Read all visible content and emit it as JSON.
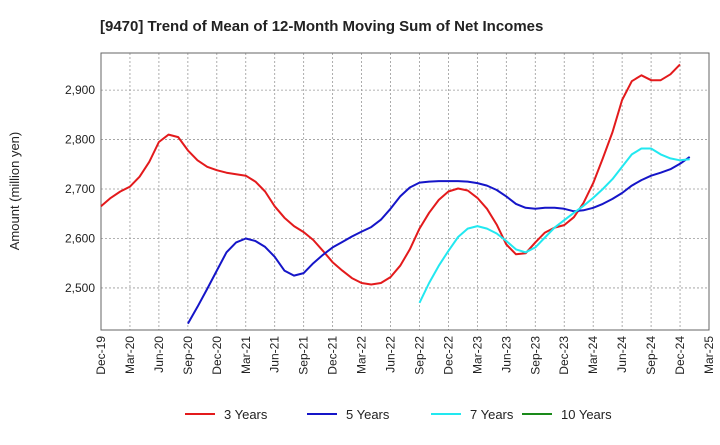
{
  "chart_data": {
    "type": "line",
    "title": "[9470]  Trend of Mean of 12-Month Moving Sum of Net Incomes",
    "ylabel": "Amount (million yen)",
    "xlabel": "",
    "ylim": [
      2415,
      2975
    ],
    "yticks": [
      2500,
      2600,
      2700,
      2800,
      2900
    ],
    "ytick_labels": [
      "2,500",
      "2,600",
      "2,700",
      "2,800",
      "2,900"
    ],
    "xticks": [
      "Dec-19",
      "Mar-20",
      "Jun-20",
      "Sep-20",
      "Dec-20",
      "Mar-21",
      "Jun-21",
      "Sep-21",
      "Dec-21",
      "Mar-22",
      "Jun-22",
      "Sep-22",
      "Dec-22",
      "Mar-23",
      "Jun-23",
      "Sep-23",
      "Dec-23",
      "Mar-24",
      "Jun-24",
      "Sep-24",
      "Dec-24",
      "Mar-25"
    ],
    "grid": true,
    "legend_position": "bottom",
    "colors": {
      "3 Years": "#e31a1c",
      "5 Years": "#1515c8",
      "7 Years": "#22e8f0",
      "10 Years": "#1a8a1a"
    },
    "series": [
      {
        "name": "3 Years",
        "start_month": "Dec-19",
        "values": [
          2665,
          2682,
          2695,
          2705,
          2725,
          2755,
          2795,
          2810,
          2805,
          2778,
          2758,
          2745,
          2738,
          2733,
          2730,
          2727,
          2715,
          2695,
          2665,
          2642,
          2625,
          2613,
          2597,
          2575,
          2552,
          2535,
          2520,
          2510,
          2507,
          2510,
          2522,
          2545,
          2578,
          2620,
          2652,
          2678,
          2695,
          2701,
          2697,
          2682,
          2660,
          2628,
          2588,
          2568,
          2570,
          2592,
          2612,
          2622,
          2627,
          2643,
          2672,
          2712,
          2762,
          2815,
          2880,
          2918,
          2930,
          2920,
          2920,
          2932,
          2952
        ]
      },
      {
        "name": "5 Years",
        "start_month": "Sep-20",
        "values": [
          2428,
          2462,
          2498,
          2535,
          2572,
          2592,
          2600,
          2595,
          2583,
          2563,
          2535,
          2525,
          2530,
          2550,
          2567,
          2582,
          2593,
          2604,
          2614,
          2623,
          2638,
          2660,
          2685,
          2703,
          2713,
          2715,
          2716,
          2716,
          2716,
          2715,
          2712,
          2707,
          2698,
          2685,
          2670,
          2662,
          2660,
          2662,
          2662,
          2660,
          2655,
          2657,
          2662,
          2670,
          2680,
          2692,
          2707,
          2718,
          2727,
          2733,
          2740,
          2751,
          2765
        ]
      },
      {
        "name": "7 Years",
        "start_month": "Sep-22",
        "values": [
          2470,
          2510,
          2545,
          2575,
          2603,
          2620,
          2625,
          2620,
          2610,
          2595,
          2578,
          2572,
          2582,
          2602,
          2622,
          2637,
          2652,
          2666,
          2682,
          2700,
          2720,
          2745,
          2770,
          2782,
          2782,
          2770,
          2762,
          2758,
          2760
        ]
      },
      {
        "name": "10 Years",
        "start_month": "",
        "values": []
      }
    ]
  }
}
